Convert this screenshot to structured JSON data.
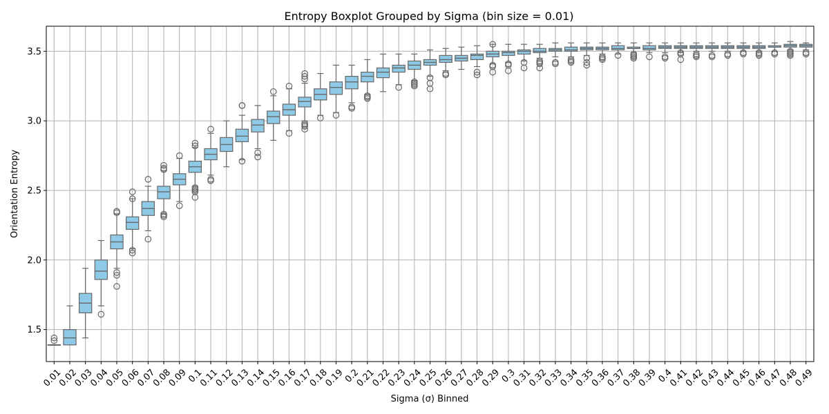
{
  "chart_data": {
    "type": "boxplot",
    "title": "Entropy Boxplot Grouped by Sigma (bin size = 0.01)",
    "xlabel": "Sigma (σ) Binned",
    "ylabel": "Orientation Entropy",
    "ylim": [
      1.27,
      3.68
    ],
    "yticks": [
      1.5,
      2.0,
      2.5,
      3.0,
      3.5
    ],
    "ytick_labels": [
      "1.5",
      "2.0",
      "2.5",
      "3.0",
      "3.5"
    ],
    "grid": true,
    "box_color": "#8ecae6",
    "line_color": "#666666",
    "categories": [
      "0.01",
      "0.02",
      "0.03",
      "0.04",
      "0.05",
      "0.06",
      "0.07",
      "0.08",
      "0.09",
      "0.1",
      "0.11",
      "0.12",
      "0.13",
      "0.14",
      "0.15",
      "0.16",
      "0.17",
      "0.18",
      "0.19",
      "0.2",
      "0.21",
      "0.22",
      "0.23",
      "0.24",
      "0.25",
      "0.26",
      "0.27",
      "0.28",
      "0.29",
      "0.3",
      "0.31",
      "0.32",
      "0.33",
      "0.34",
      "0.35",
      "0.36",
      "0.37",
      "0.38",
      "0.39",
      "0.4",
      "0.41",
      "0.42",
      "0.43",
      "0.44",
      "0.45",
      "0.46",
      "0.47",
      "0.48",
      "0.49"
    ],
    "boxes": [
      {
        "whislo": 1.39,
        "q1": 1.39,
        "med": 1.39,
        "q3": 1.39,
        "whishi": 1.39,
        "fliers": [
          1.42,
          1.44
        ]
      },
      {
        "whislo": 1.39,
        "q1": 1.39,
        "med": 1.44,
        "q3": 1.5,
        "whishi": 1.67,
        "fliers": []
      },
      {
        "whislo": 1.44,
        "q1": 1.62,
        "med": 1.69,
        "q3": 1.76,
        "whishi": 1.94,
        "fliers": []
      },
      {
        "whislo": 1.67,
        "q1": 1.86,
        "med": 1.92,
        "q3": 2.0,
        "whishi": 2.14,
        "fliers": [
          1.61
        ]
      },
      {
        "whislo": 1.94,
        "q1": 2.08,
        "med": 2.13,
        "q3": 2.18,
        "whishi": 2.33,
        "fliers": [
          2.34,
          2.35,
          1.89,
          1.91,
          1.81
        ]
      },
      {
        "whislo": 2.08,
        "q1": 2.22,
        "med": 2.27,
        "q3": 2.31,
        "whishi": 2.44,
        "fliers": [
          2.44,
          2.49,
          2.05,
          2.07
        ]
      },
      {
        "whislo": 2.21,
        "q1": 2.32,
        "med": 2.37,
        "q3": 2.42,
        "whishi": 2.53,
        "fliers": [
          2.58,
          2.15
        ]
      },
      {
        "whislo": 2.33,
        "q1": 2.44,
        "med": 2.49,
        "q3": 2.53,
        "whishi": 2.64,
        "fliers": [
          2.65,
          2.66,
          2.68,
          2.33,
          2.32,
          2.31
        ]
      },
      {
        "whislo": 2.42,
        "q1": 2.54,
        "med": 2.58,
        "q3": 2.62,
        "whishi": 2.73,
        "fliers": [
          2.75,
          2.39
        ]
      },
      {
        "whislo": 2.53,
        "q1": 2.63,
        "med": 2.67,
        "q3": 2.71,
        "whishi": 2.81,
        "fliers": [
          2.82,
          2.84,
          2.52,
          2.51,
          2.5,
          2.49,
          2.45
        ]
      },
      {
        "whislo": 2.61,
        "q1": 2.72,
        "med": 2.76,
        "q3": 2.8,
        "whishi": 2.91,
        "fliers": [
          2.94,
          2.58,
          2.57
        ]
      },
      {
        "whislo": 2.67,
        "q1": 2.78,
        "med": 2.83,
        "q3": 2.88,
        "whishi": 3.0,
        "fliers": []
      },
      {
        "whislo": 2.72,
        "q1": 2.85,
        "med": 2.89,
        "q3": 2.94,
        "whishi": 3.04,
        "fliers": [
          3.11,
          3.11,
          2.71
        ]
      },
      {
        "whislo": 2.8,
        "q1": 2.92,
        "med": 2.97,
        "q3": 3.01,
        "whishi": 3.11,
        "fliers": [
          2.77,
          2.74
        ]
      },
      {
        "whislo": 2.86,
        "q1": 2.98,
        "med": 3.03,
        "q3": 3.07,
        "whishi": 3.18,
        "fliers": [
          3.21
        ]
      },
      {
        "whislo": 2.93,
        "q1": 3.04,
        "med": 3.08,
        "q3": 3.12,
        "whishi": 3.23,
        "fliers": [
          3.25,
          2.91
        ]
      },
      {
        "whislo": 3.0,
        "q1": 3.1,
        "med": 3.14,
        "q3": 3.17,
        "whishi": 3.27,
        "fliers": [
          3.3,
          3.32,
          3.34,
          2.98,
          2.97,
          2.96,
          2.94
        ]
      },
      {
        "whislo": 3.04,
        "q1": 3.15,
        "med": 3.19,
        "q3": 3.23,
        "whishi": 3.34,
        "fliers": [
          3.02
        ]
      },
      {
        "whislo": 3.06,
        "q1": 3.19,
        "med": 3.24,
        "q3": 3.28,
        "whishi": 3.4,
        "fliers": [
          3.04
        ]
      },
      {
        "whislo": 3.13,
        "q1": 3.23,
        "med": 3.28,
        "q3": 3.32,
        "whishi": 3.4,
        "fliers": [
          3.1,
          3.09
        ]
      },
      {
        "whislo": 3.19,
        "q1": 3.28,
        "med": 3.32,
        "q3": 3.35,
        "whishi": 3.44,
        "fliers": [
          3.18,
          3.17,
          3.16
        ]
      },
      {
        "whislo": 3.21,
        "q1": 3.31,
        "med": 3.35,
        "q3": 3.38,
        "whishi": 3.48,
        "fliers": []
      },
      {
        "whislo": 3.26,
        "q1": 3.35,
        "med": 3.38,
        "q3": 3.4,
        "whishi": 3.48,
        "fliers": [
          3.24
        ]
      },
      {
        "whislo": 3.29,
        "q1": 3.37,
        "med": 3.4,
        "q3": 3.43,
        "whishi": 3.48,
        "fliers": [
          3.28,
          3.27,
          3.26,
          3.25
        ]
      },
      {
        "whislo": 3.32,
        "q1": 3.4,
        "med": 3.42,
        "q3": 3.44,
        "whishi": 3.51,
        "fliers": [
          3.31,
          3.27,
          3.23
        ]
      },
      {
        "whislo": 3.36,
        "q1": 3.42,
        "med": 3.44,
        "q3": 3.47,
        "whishi": 3.52,
        "fliers": [
          3.34,
          3.33
        ]
      },
      {
        "whislo": 3.37,
        "q1": 3.43,
        "med": 3.45,
        "q3": 3.47,
        "whishi": 3.53,
        "fliers": []
      },
      {
        "whislo": 3.39,
        "q1": 3.44,
        "med": 3.47,
        "q3": 3.48,
        "whishi": 3.54,
        "fliers": [
          3.35,
          3.33
        ]
      },
      {
        "whislo": 3.41,
        "q1": 3.46,
        "med": 3.48,
        "q3": 3.5,
        "whishi": 3.55,
        "fliers": [
          3.55,
          3.4,
          3.39,
          3.35
        ]
      },
      {
        "whislo": 3.42,
        "q1": 3.47,
        "med": 3.49,
        "q3": 3.5,
        "whishi": 3.55,
        "fliers": [
          3.41,
          3.4,
          3.36
        ]
      },
      {
        "whislo": 3.43,
        "q1": 3.48,
        "med": 3.5,
        "q3": 3.51,
        "whishi": 3.55,
        "fliers": [
          3.42,
          3.38
        ]
      },
      {
        "whislo": 3.45,
        "q1": 3.49,
        "med": 3.5,
        "q3": 3.52,
        "whishi": 3.55,
        "fliers": [
          3.43,
          3.42,
          3.41,
          3.38
        ]
      },
      {
        "whislo": 3.46,
        "q1": 3.5,
        "med": 3.51,
        "q3": 3.52,
        "whishi": 3.56,
        "fliers": [
          3.42,
          3.41
        ]
      },
      {
        "whislo": 3.46,
        "q1": 3.5,
        "med": 3.51,
        "q3": 3.53,
        "whishi": 3.56,
        "fliers": [
          3.44,
          3.43,
          3.42
        ]
      },
      {
        "whislo": 3.47,
        "q1": 3.51,
        "med": 3.52,
        "q3": 3.53,
        "whishi": 3.56,
        "fliers": [
          3.45,
          3.42,
          3.4
        ]
      },
      {
        "whislo": 3.48,
        "q1": 3.51,
        "med": 3.52,
        "q3": 3.53,
        "whishi": 3.56,
        "fliers": [
          3.46,
          3.45,
          3.44
        ]
      },
      {
        "whislo": 3.48,
        "q1": 3.51,
        "med": 3.52,
        "q3": 3.54,
        "whishi": 3.56,
        "fliers": [
          3.47
        ]
      },
      {
        "whislo": 3.49,
        "q1": 3.52,
        "med": 3.52,
        "q3": 3.53,
        "whishi": 3.56,
        "fliers": [
          3.48,
          3.47,
          3.46,
          3.45
        ]
      },
      {
        "whislo": 3.49,
        "q1": 3.51,
        "med": 3.52,
        "q3": 3.54,
        "whishi": 3.56,
        "fliers": [
          3.46
        ]
      },
      {
        "whislo": 3.49,
        "q1": 3.52,
        "med": 3.53,
        "q3": 3.54,
        "whishi": 3.56,
        "fliers": [
          3.46,
          3.45
        ]
      },
      {
        "whislo": 3.49,
        "q1": 3.52,
        "med": 3.53,
        "q3": 3.54,
        "whishi": 3.56,
        "fliers": [
          3.49,
          3.48,
          3.44
        ]
      },
      {
        "whislo": 3.5,
        "q1": 3.52,
        "med": 3.53,
        "q3": 3.54,
        "whishi": 3.56,
        "fliers": [
          3.48,
          3.47,
          3.46
        ]
      },
      {
        "whislo": 3.5,
        "q1": 3.52,
        "med": 3.53,
        "q3": 3.54,
        "whishi": 3.56,
        "fliers": [
          3.47,
          3.46
        ]
      },
      {
        "whislo": 3.5,
        "q1": 3.52,
        "med": 3.53,
        "q3": 3.54,
        "whishi": 3.56,
        "fliers": [
          3.48,
          3.47
        ]
      },
      {
        "whislo": 3.5,
        "q1": 3.52,
        "med": 3.53,
        "q3": 3.54,
        "whishi": 3.56,
        "fliers": [
          3.49,
          3.48
        ]
      },
      {
        "whislo": 3.5,
        "q1": 3.52,
        "med": 3.53,
        "q3": 3.54,
        "whishi": 3.56,
        "fliers": [
          3.49,
          3.48,
          3.47
        ]
      },
      {
        "whislo": 3.5,
        "q1": 3.53,
        "med": 3.53,
        "q3": 3.54,
        "whishi": 3.56,
        "fliers": [
          3.49,
          3.48
        ]
      },
      {
        "whislo": 3.51,
        "q1": 3.53,
        "med": 3.54,
        "q3": 3.55,
        "whishi": 3.57,
        "fliers": [
          3.5,
          3.49,
          3.48,
          3.47
        ]
      },
      {
        "whislo": 3.51,
        "q1": 3.53,
        "med": 3.54,
        "q3": 3.55,
        "whishi": 3.56,
        "fliers": [
          3.49,
          3.48
        ]
      }
    ]
  }
}
